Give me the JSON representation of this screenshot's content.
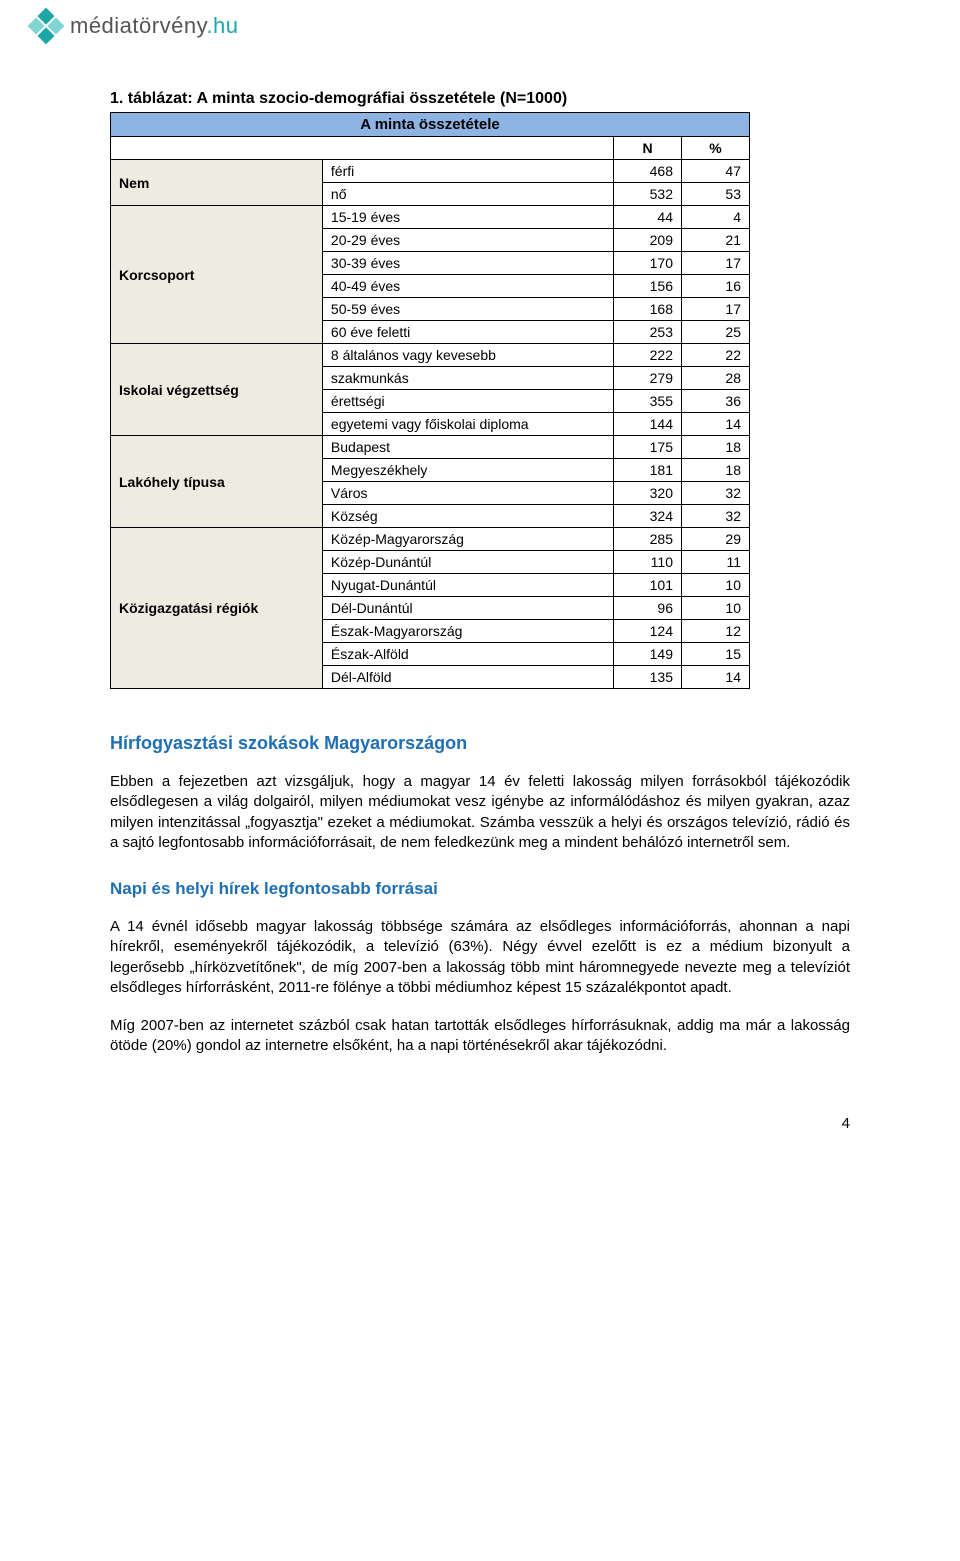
{
  "brand": {
    "name_main": "médiatörvény",
    "name_suffix": ".hu"
  },
  "table": {
    "caption": "1. táblázat: A minta szocio-demográfiai összetétele (N=1000)",
    "header_title": "A minta összetétele",
    "col_labels": {
      "n": "N",
      "pct": "%"
    },
    "background_color": "#ffffff",
    "header_bg": "#8db3e2",
    "group_bg": "#eeece1",
    "border_color": "#000000",
    "font_size": 14,
    "header_font_size": 15,
    "groups": [
      {
        "name": "Nem",
        "rows": [
          {
            "label": "férfi",
            "n": 468,
            "pct": 47
          },
          {
            "label": "nő",
            "n": 532,
            "pct": 53
          }
        ]
      },
      {
        "name": "Korcsoport",
        "rows": [
          {
            "label": "15-19 éves",
            "n": 44,
            "pct": 4
          },
          {
            "label": "20-29 éves",
            "n": 209,
            "pct": 21
          },
          {
            "label": "30-39 éves",
            "n": 170,
            "pct": 17
          },
          {
            "label": "40-49 éves",
            "n": 156,
            "pct": 16
          },
          {
            "label": "50-59 éves",
            "n": 168,
            "pct": 17
          },
          {
            "label": "60 éve feletti",
            "n": 253,
            "pct": 25
          }
        ]
      },
      {
        "name": "Iskolai végzettség",
        "rows": [
          {
            "label": "8 általános vagy kevesebb",
            "n": 222,
            "pct": 22
          },
          {
            "label": "szakmunkás",
            "n": 279,
            "pct": 28
          },
          {
            "label": "érettségi",
            "n": 355,
            "pct": 36
          },
          {
            "label": "egyetemi vagy főiskolai diploma",
            "n": 144,
            "pct": 14
          }
        ]
      },
      {
        "name": "Lakóhely típusa",
        "rows": [
          {
            "label": "Budapest",
            "n": 175,
            "pct": 18
          },
          {
            "label": "Megyeszékhely",
            "n": 181,
            "pct": 18
          },
          {
            "label": "Város",
            "n": 320,
            "pct": 32
          },
          {
            "label": "Község",
            "n": 324,
            "pct": 32
          }
        ]
      },
      {
        "name": "Közigazgatási régiók",
        "rows": [
          {
            "label": "Közép-Magyarország",
            "n": 285,
            "pct": 29
          },
          {
            "label": "Közép-Dunántúl",
            "n": 110,
            "pct": 11
          },
          {
            "label": "Nyugat-Dunántúl",
            "n": 101,
            "pct": 10
          },
          {
            "label": "Dél-Dunántúl",
            "n": 96,
            "pct": 10
          },
          {
            "label": "Észak-Magyarország",
            "n": 124,
            "pct": 12
          },
          {
            "label": "Észak-Alföld",
            "n": 149,
            "pct": 15
          },
          {
            "label": "Dél-Alföld",
            "n": 135,
            "pct": 14
          }
        ]
      }
    ]
  },
  "sections": {
    "h2_1": "Hírfogyasztási szokások Magyarországon",
    "p1": "Ebben a fejezetben azt vizsgáljuk, hogy a magyar 14 év feletti lakosság milyen forrásokból tájékozódik elsődlegesen a világ dolgairól, milyen médiumokat vesz igénybe az informálódáshoz és milyen gyakran, azaz milyen intenzitással „fogyasztja\" ezeket a médiumokat. Számba vesszük a helyi és országos televízió, rádió és a sajtó legfontosabb információforrásait, de nem feledkezünk meg a mindent behálózó internetről sem.",
    "h2_2": "Napi és helyi hírek legfontosabb forrásai",
    "p2": "A 14 évnél idősebb magyar lakosság többsége számára az elsődleges információforrás, ahonnan a napi hírekről, eseményekről tájékozódik, a televízió (63%). Négy évvel ezelőtt is ez a médium bizonyult a legerősebb „hírközvetítőnek\", de míg 2007-ben a lakosság több mint háromnegyede nevezte meg a televíziót elsődleges hírforrásként, 2011-re fölénye a többi médiumhoz képest 15 százalékpontot apadt.",
    "p3": "Míg 2007-ben az internetet százból csak hatan tartották elsődleges hírforrásuknak, addig ma már a lakosság ötöde (20%) gondol az internetre elsőként, ha a napi történésekről akar tájékozódni."
  },
  "page_number": "4",
  "colors": {
    "heading": "#1f6fb5",
    "brand_teal": "#1ea6a6",
    "text": "#000000"
  }
}
